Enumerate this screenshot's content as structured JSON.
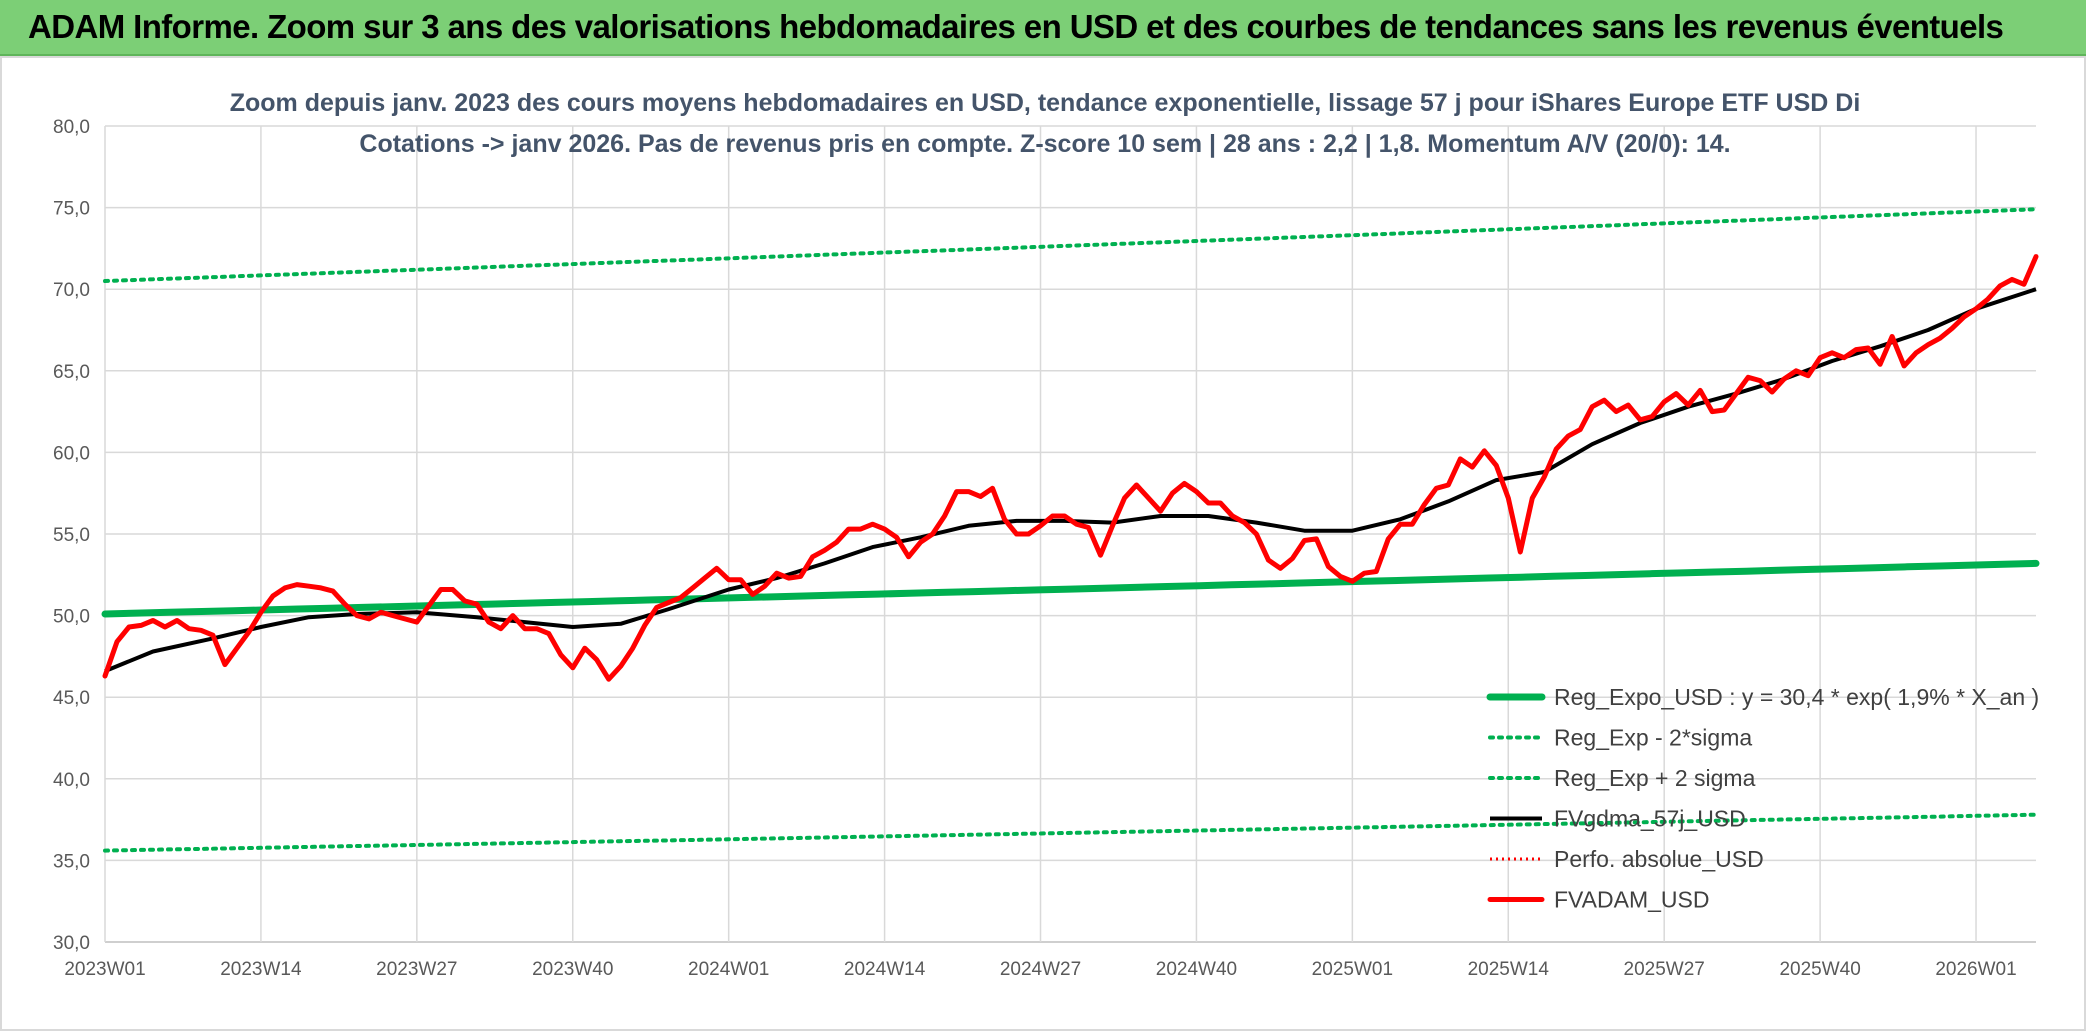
{
  "header": {
    "title": "ADAM Informe. Zoom sur 3 ans des valorisations hebdomadaires en USD et des courbes de tendances sans les revenus éventuels"
  },
  "chart_data": {
    "type": "line",
    "title_line1": "Zoom depuis janv. 2023 des cours moyens hebdomadaires en USD, tendance exponentielle, lissage 57 j pour iShares Europe ETF USD Di",
    "title_line2": "Cotations -> janv 2026. Pas de revenus pris en compte. Z-score 10 sem | 28 ans : 2,2 | 1,8. Momentum A/V (20/0): 14.",
    "ylim": [
      30,
      80
    ],
    "y_ticks": [
      "80,0",
      "75,0",
      "70,0",
      "65,0",
      "60,0",
      "55,0",
      "50,0",
      "45,0",
      "40,0",
      "35,0",
      "30,0"
    ],
    "x_ticks": [
      "2023W01",
      "2023W14",
      "2023W27",
      "2023W40",
      "2024W01",
      "2024W14",
      "2024W27",
      "2024W40",
      "2025W01",
      "2025W14",
      "2025W27",
      "2025W40",
      "2026W01"
    ],
    "x_tick_index": [
      0,
      13,
      26,
      39,
      52,
      65,
      78,
      91,
      104,
      117,
      130,
      143,
      156
    ],
    "n_weeks": 162,
    "series": [
      {
        "name": "Reg_Expo_USD : y = 30,4 * exp( 1,9% *  X_an )",
        "color": "#00b050",
        "style": "thick",
        "start": 50.1,
        "end": 53.2
      },
      {
        "name": "Reg_Exp - 2*sigma",
        "color": "#00b050",
        "style": "dotted",
        "start": 35.6,
        "end": 37.8
      },
      {
        "name": "Reg_Exp + 2 sigma",
        "color": "#00b050",
        "style": "dotted",
        "start": 70.5,
        "end": 74.9
      },
      {
        "name": "FVgdma_57j_USD",
        "color": "#000000",
        "style": "solid",
        "points": [
          [
            0,
            46.6
          ],
          [
            4,
            47.8
          ],
          [
            9,
            48.6
          ],
          [
            13,
            49.3
          ],
          [
            17,
            49.9
          ],
          [
            21,
            50.1
          ],
          [
            26,
            50.2
          ],
          [
            31,
            49.9
          ],
          [
            35,
            49.6
          ],
          [
            39,
            49.3
          ],
          [
            43,
            49.5
          ],
          [
            47,
            50.4
          ],
          [
            52,
            51.6
          ],
          [
            56,
            52.3
          ],
          [
            60,
            53.2
          ],
          [
            64,
            54.2
          ],
          [
            68,
            54.8
          ],
          [
            72,
            55.5
          ],
          [
            76,
            55.8
          ],
          [
            80,
            55.8
          ],
          [
            84,
            55.7
          ],
          [
            88,
            56.1
          ],
          [
            92,
            56.1
          ],
          [
            96,
            55.7
          ],
          [
            100,
            55.2
          ],
          [
            104,
            55.2
          ],
          [
            108,
            55.9
          ],
          [
            112,
            57.0
          ],
          [
            116,
            58.3
          ],
          [
            120,
            58.8
          ],
          [
            124,
            60.5
          ],
          [
            128,
            61.8
          ],
          [
            132,
            62.8
          ],
          [
            136,
            63.6
          ],
          [
            140,
            64.5
          ],
          [
            144,
            65.6
          ],
          [
            148,
            66.5
          ],
          [
            152,
            67.5
          ],
          [
            156,
            68.8
          ],
          [
            161,
            70.0
          ]
        ]
      },
      {
        "name": "Perfo. absolue_USD",
        "color": "#ff0000",
        "style": "dotted-red",
        "points": []
      },
      {
        "name": "FVADAM_USD",
        "color": "#ff0000",
        "style": "thick-red",
        "points": [
          [
            0,
            46.3
          ],
          [
            1,
            48.4
          ],
          [
            2,
            49.3
          ],
          [
            3,
            49.4
          ],
          [
            4,
            49.7
          ],
          [
            5,
            49.3
          ],
          [
            6,
            49.7
          ],
          [
            7,
            49.2
          ],
          [
            8,
            49.1
          ],
          [
            9,
            48.8
          ],
          [
            10,
            47.0
          ],
          [
            11,
            48.0
          ],
          [
            12,
            49.0
          ],
          [
            13,
            50.2
          ],
          [
            14,
            51.2
          ],
          [
            15,
            51.7
          ],
          [
            16,
            51.9
          ],
          [
            17,
            51.8
          ],
          [
            18,
            51.7
          ],
          [
            19,
            51.5
          ],
          [
            20,
            50.7
          ],
          [
            21,
            50.0
          ],
          [
            22,
            49.8
          ],
          [
            23,
            50.2
          ],
          [
            24,
            50.0
          ],
          [
            25,
            49.8
          ],
          [
            26,
            49.6
          ],
          [
            27,
            50.6
          ],
          [
            28,
            51.6
          ],
          [
            29,
            51.6
          ],
          [
            30,
            50.9
          ],
          [
            31,
            50.7
          ],
          [
            32,
            49.6
          ],
          [
            33,
            49.2
          ],
          [
            34,
            50.0
          ],
          [
            35,
            49.2
          ],
          [
            36,
            49.2
          ],
          [
            37,
            48.9
          ],
          [
            38,
            47.6
          ],
          [
            39,
            46.8
          ],
          [
            40,
            48.0
          ],
          [
            41,
            47.3
          ],
          [
            42,
            46.1
          ],
          [
            43,
            46.9
          ],
          [
            44,
            48.0
          ],
          [
            45,
            49.4
          ],
          [
            46,
            50.5
          ],
          [
            47,
            50.8
          ],
          [
            48,
            51.1
          ],
          [
            49,
            51.7
          ],
          [
            50,
            52.3
          ],
          [
            51,
            52.9
          ],
          [
            52,
            52.2
          ],
          [
            53,
            52.2
          ],
          [
            54,
            51.3
          ],
          [
            55,
            51.8
          ],
          [
            56,
            52.6
          ],
          [
            57,
            52.3
          ],
          [
            58,
            52.4
          ],
          [
            59,
            53.6
          ],
          [
            60,
            54.0
          ],
          [
            61,
            54.5
          ],
          [
            62,
            55.3
          ],
          [
            63,
            55.3
          ],
          [
            64,
            55.6
          ],
          [
            65,
            55.3
          ],
          [
            66,
            54.8
          ],
          [
            67,
            53.6
          ],
          [
            68,
            54.5
          ],
          [
            69,
            55.0
          ],
          [
            70,
            56.1
          ],
          [
            71,
            57.6
          ],
          [
            72,
            57.6
          ],
          [
            73,
            57.3
          ],
          [
            74,
            57.8
          ],
          [
            75,
            55.9
          ],
          [
            76,
            55.0
          ],
          [
            77,
            55.0
          ],
          [
            78,
            55.5
          ],
          [
            79,
            56.1
          ],
          [
            80,
            56.1
          ],
          [
            81,
            55.6
          ],
          [
            82,
            55.4
          ],
          [
            83,
            53.7
          ],
          [
            84,
            55.5
          ],
          [
            85,
            57.2
          ],
          [
            86,
            58.0
          ],
          [
            87,
            57.2
          ],
          [
            88,
            56.4
          ],
          [
            89,
            57.5
          ],
          [
            90,
            58.1
          ],
          [
            91,
            57.6
          ],
          [
            92,
            56.9
          ],
          [
            93,
            56.9
          ],
          [
            94,
            56.1
          ],
          [
            95,
            55.7
          ],
          [
            96,
            55.0
          ],
          [
            97,
            53.4
          ],
          [
            98,
            52.9
          ],
          [
            99,
            53.5
          ],
          [
            100,
            54.6
          ],
          [
            101,
            54.7
          ],
          [
            102,
            53.0
          ],
          [
            103,
            52.4
          ],
          [
            104,
            52.1
          ],
          [
            105,
            52.6
          ],
          [
            106,
            52.7
          ],
          [
            107,
            54.7
          ],
          [
            108,
            55.6
          ],
          [
            109,
            55.6
          ],
          [
            110,
            56.8
          ],
          [
            111,
            57.8
          ],
          [
            112,
            58.0
          ],
          [
            113,
            59.6
          ],
          [
            114,
            59.1
          ],
          [
            115,
            60.1
          ],
          [
            116,
            59.2
          ],
          [
            117,
            57.2
          ],
          [
            118,
            53.9
          ],
          [
            119,
            57.2
          ],
          [
            120,
            58.5
          ],
          [
            121,
            60.2
          ],
          [
            122,
            61.0
          ],
          [
            123,
            61.4
          ],
          [
            124,
            62.8
          ],
          [
            125,
            63.2
          ],
          [
            126,
            62.5
          ],
          [
            127,
            62.9
          ],
          [
            128,
            62.0
          ],
          [
            129,
            62.2
          ],
          [
            130,
            63.1
          ],
          [
            131,
            63.6
          ],
          [
            132,
            62.9
          ],
          [
            133,
            63.8
          ],
          [
            134,
            62.5
          ],
          [
            135,
            62.6
          ],
          [
            136,
            63.6
          ],
          [
            137,
            64.6
          ],
          [
            138,
            64.4
          ],
          [
            139,
            63.7
          ],
          [
            140,
            64.5
          ],
          [
            141,
            65.0
          ],
          [
            142,
            64.7
          ],
          [
            143,
            65.8
          ],
          [
            144,
            66.1
          ],
          [
            145,
            65.8
          ],
          [
            146,
            66.3
          ],
          [
            147,
            66.4
          ],
          [
            148,
            65.4
          ],
          [
            149,
            67.1
          ],
          [
            150,
            65.3
          ],
          [
            151,
            66.1
          ],
          [
            152,
            66.6
          ],
          [
            153,
            67.0
          ],
          [
            154,
            67.6
          ],
          [
            155,
            68.3
          ],
          [
            156,
            68.8
          ],
          [
            157,
            69.4
          ],
          [
            158,
            70.2
          ],
          [
            159,
            70.6
          ],
          [
            160,
            70.3
          ],
          [
            161,
            72.0
          ]
        ]
      }
    ],
    "legend_position": "bottom-right"
  }
}
